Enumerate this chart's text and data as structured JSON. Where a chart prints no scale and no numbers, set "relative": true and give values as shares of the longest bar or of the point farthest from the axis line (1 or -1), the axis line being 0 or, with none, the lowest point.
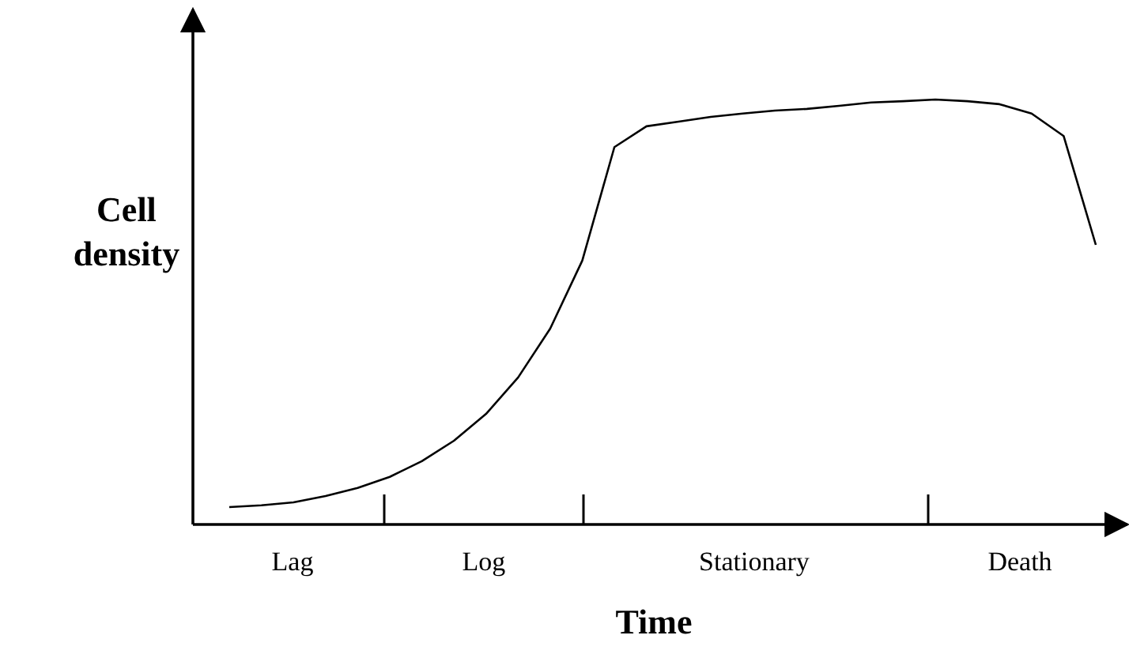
{
  "chart_data": {
    "type": "line",
    "relative": true,
    "xlabel": "Time",
    "ylabel": "Cell density",
    "marker": "none",
    "line_style": "solid",
    "categories": [
      null,
      null,
      null,
      null,
      null,
      null,
      null,
      null,
      null,
      null,
      null,
      null,
      null,
      null,
      null,
      null,
      null,
      null,
      null,
      null,
      null,
      null,
      null,
      null,
      null,
      null,
      null,
      null
    ],
    "series": [
      {
        "color": "#000000",
        "values": [
          0.041,
          0.045,
          0.052,
          0.067,
          0.086,
          0.112,
          0.149,
          0.197,
          0.26,
          0.346,
          0.461,
          0.621,
          0.888,
          0.937,
          0.948,
          0.959,
          0.967,
          0.974,
          0.978,
          0.985,
          0.993,
          0.996,
          1,
          0.996,
          0.989,
          0.967,
          0.914,
          0.658
        ]
      }
    ],
    "annotations": [
      "Lag",
      "Log",
      "Stationary",
      "Death"
    ]
  }
}
